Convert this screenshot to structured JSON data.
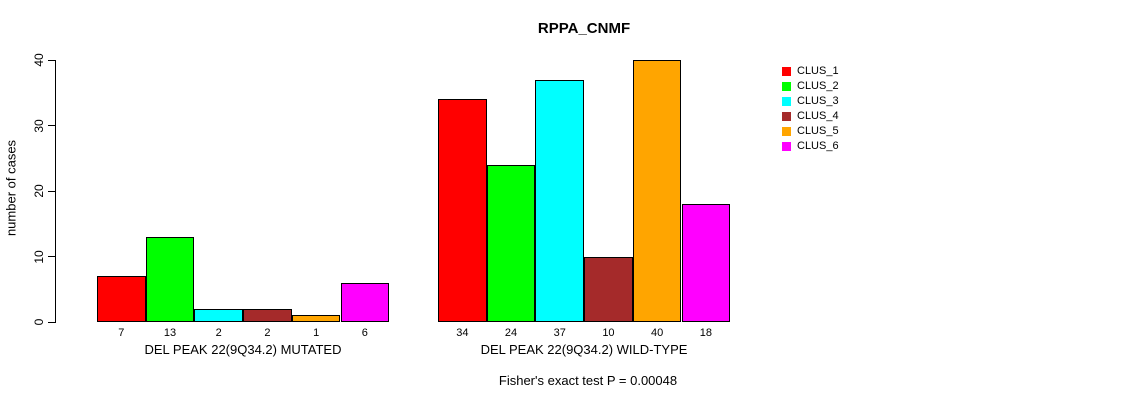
{
  "chart_data": {
    "type": "bar",
    "title": "RPPA_CNMF",
    "ylabel": "number of cases",
    "ylim": [
      0,
      40
    ],
    "yticks": [
      0,
      10,
      20,
      30,
      40
    ],
    "grid": false,
    "legend": {
      "position": "right",
      "entries": [
        {
          "label": "CLUS_1",
          "color": "#FF0000"
        },
        {
          "label": "CLUS_2",
          "color": "#00FF00"
        },
        {
          "label": "CLUS_3",
          "color": "#00FFFF"
        },
        {
          "label": "CLUS_4",
          "color": "#A52A2A"
        },
        {
          "label": "CLUS_5",
          "color": "#FFA500"
        },
        {
          "label": "CLUS_6",
          "color": "#FF00FF"
        }
      ]
    },
    "groups": [
      {
        "label": "DEL PEAK 22(9Q34.2) MUTATED",
        "values": [
          7,
          13,
          2,
          2,
          1,
          6
        ]
      },
      {
        "label": "DEL PEAK 22(9Q34.2) WILD-TYPE",
        "values": [
          34,
          24,
          37,
          10,
          40,
          18
        ]
      }
    ],
    "footnote": "Fisher's exact test P = 0.00048",
    "bar_border_color": "#000000",
    "axis_color": "#000000"
  }
}
